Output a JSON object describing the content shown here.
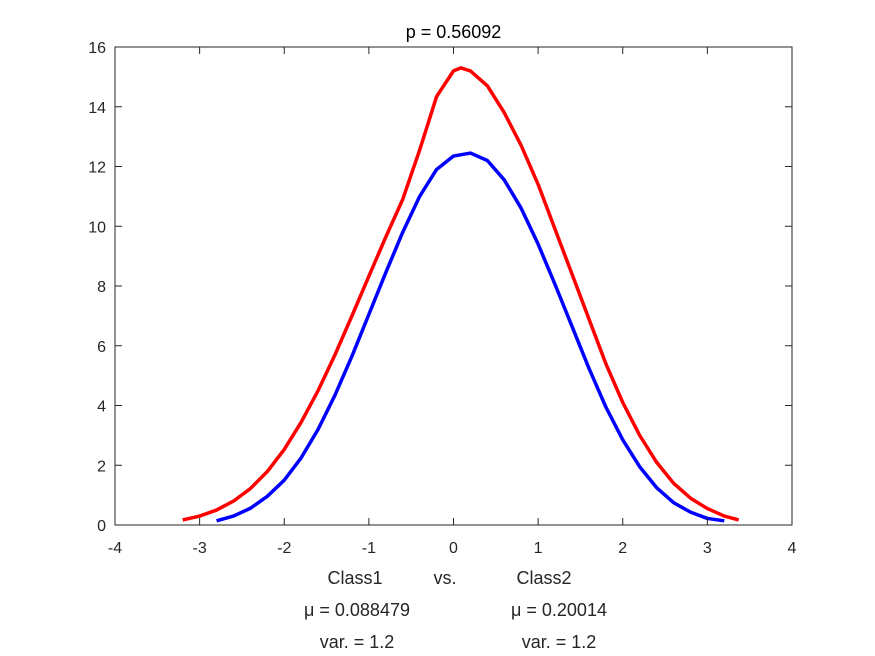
{
  "chart_data": {
    "type": "line",
    "title": "p = 0.56092",
    "xlim": [
      -4,
      4
    ],
    "ylim": [
      0,
      16
    ],
    "x_ticks": [
      "-4",
      "-3",
      "-2",
      "-1",
      "0",
      "1",
      "2",
      "3",
      "4"
    ],
    "y_ticks": [
      "0",
      "2",
      "4",
      "6",
      "8",
      "10",
      "12",
      "14",
      "16"
    ],
    "grid": false,
    "xlabel_lines": [
      {
        "left": "Class1",
        "middle": "vs.",
        "right": "Class2"
      },
      {
        "left": "μ = 0.088479",
        "right": "μ = 0.20014"
      },
      {
        "left": "var. = 1.2",
        "right": "var. = 1.2"
      }
    ],
    "series": [
      {
        "color": "#ff0000",
        "x": [
          -3.2,
          -3.0,
          -2.8,
          -2.6,
          -2.4,
          -2.2,
          -2.0,
          -1.8,
          -1.6,
          -1.4,
          -1.2,
          -1.0,
          -0.8,
          -0.6,
          -0.4,
          -0.2,
          0.0,
          0.088,
          0.2,
          0.4,
          0.6,
          0.8,
          1.0,
          1.2,
          1.4,
          1.6,
          1.8,
          2.0,
          2.2,
          2.4,
          2.6,
          2.8,
          3.0,
          3.2,
          3.37
        ],
        "y": [
          0.17,
          0.3,
          0.5,
          0.8,
          1.22,
          1.79,
          2.53,
          3.44,
          4.5,
          5.7,
          7.0,
          8.33,
          9.64,
          10.9,
          12.55,
          14.34,
          15.2,
          15.3,
          15.2,
          14.7,
          13.8,
          12.7,
          11.4,
          9.9,
          8.4,
          6.9,
          5.4,
          4.1,
          3.0,
          2.1,
          1.4,
          0.9,
          0.55,
          0.3,
          0.17
        ]
      },
      {
        "color": "#0000ff",
        "x": [
          -2.8,
          -2.6,
          -2.4,
          -2.2,
          -2.0,
          -1.8,
          -1.6,
          -1.4,
          -1.2,
          -1.0,
          -0.8,
          -0.6,
          -0.4,
          -0.2,
          0.0,
          0.2,
          0.4,
          0.6,
          0.8,
          1.0,
          1.2,
          1.4,
          1.6,
          1.8,
          2.0,
          2.2,
          2.4,
          2.6,
          2.8,
          3.0,
          3.2
        ],
        "y": [
          0.14,
          0.3,
          0.56,
          0.96,
          1.5,
          2.25,
          3.2,
          4.35,
          5.65,
          7.05,
          8.45,
          9.8,
          11.0,
          11.9,
          12.35,
          12.45,
          12.2,
          11.55,
          10.6,
          9.4,
          8.05,
          6.65,
          5.25,
          3.95,
          2.85,
          1.95,
          1.25,
          0.75,
          0.43,
          0.22,
          0.14
        ]
      }
    ]
  }
}
